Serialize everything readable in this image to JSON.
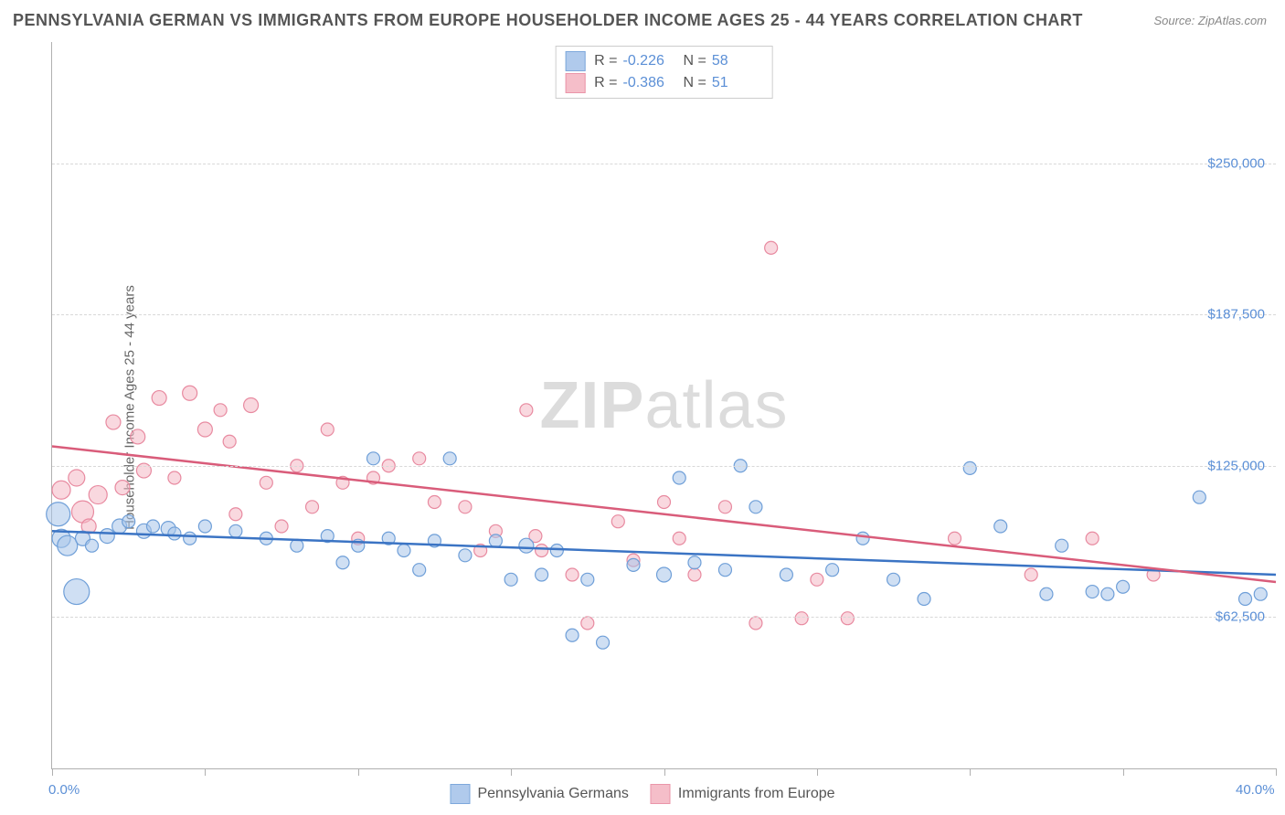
{
  "title": "PENNSYLVANIA GERMAN VS IMMIGRANTS FROM EUROPE HOUSEHOLDER INCOME AGES 25 - 44 YEARS CORRELATION CHART",
  "source": "Source: ZipAtlas.com",
  "ylabel": "Householder Income Ages 25 - 44 years",
  "watermark_bold": "ZIP",
  "watermark_rest": "atlas",
  "chart": {
    "type": "scatter",
    "xlim": [
      0,
      40
    ],
    "ylim": [
      0,
      300000
    ],
    "x_tick_positions": [
      0,
      5,
      10,
      15,
      20,
      25,
      30,
      35,
      40
    ],
    "x_tick_labels_shown": {
      "0": "0.0%",
      "40": "40.0%"
    },
    "y_gridlines": [
      62500,
      125000,
      187500,
      250000
    ],
    "y_tick_labels": [
      "$62,500",
      "$125,000",
      "$187,500",
      "$250,000"
    ],
    "background_color": "#ffffff",
    "grid_color": "#d8d8d8",
    "axis_color": "#b0b0b0",
    "tick_label_color": "#5b8fd6"
  },
  "series": [
    {
      "name": "Pennsylvania Germans",
      "color_fill": "#a8c5ea",
      "color_stroke": "#6f9fd8",
      "line_color": "#3b74c4",
      "fill_opacity": 0.55,
      "R": "-0.226",
      "N": "58",
      "regression": {
        "x1": 0,
        "y1": 98000,
        "x2": 40,
        "y2": 80000
      },
      "points": [
        {
          "x": 0.2,
          "y": 105000,
          "r": 13
        },
        {
          "x": 0.3,
          "y": 95000,
          "r": 10
        },
        {
          "x": 0.5,
          "y": 92000,
          "r": 11
        },
        {
          "x": 0.8,
          "y": 73000,
          "r": 14
        },
        {
          "x": 1.0,
          "y": 95000,
          "r": 8
        },
        {
          "x": 1.3,
          "y": 92000,
          "r": 7
        },
        {
          "x": 1.8,
          "y": 96000,
          "r": 8
        },
        {
          "x": 2.2,
          "y": 100000,
          "r": 8
        },
        {
          "x": 2.5,
          "y": 102000,
          "r": 7
        },
        {
          "x": 3.0,
          "y": 98000,
          "r": 8
        },
        {
          "x": 3.3,
          "y": 100000,
          "r": 7
        },
        {
          "x": 3.8,
          "y": 99000,
          "r": 8
        },
        {
          "x": 4.0,
          "y": 97000,
          "r": 7
        },
        {
          "x": 4.5,
          "y": 95000,
          "r": 7
        },
        {
          "x": 5.0,
          "y": 100000,
          "r": 7
        },
        {
          "x": 6.0,
          "y": 98000,
          "r": 7
        },
        {
          "x": 7.0,
          "y": 95000,
          "r": 7
        },
        {
          "x": 8.0,
          "y": 92000,
          "r": 7
        },
        {
          "x": 9.0,
          "y": 96000,
          "r": 7
        },
        {
          "x": 9.5,
          "y": 85000,
          "r": 7
        },
        {
          "x": 10.0,
          "y": 92000,
          "r": 7
        },
        {
          "x": 10.5,
          "y": 128000,
          "r": 7
        },
        {
          "x": 11.0,
          "y": 95000,
          "r": 7
        },
        {
          "x": 11.5,
          "y": 90000,
          "r": 7
        },
        {
          "x": 12.0,
          "y": 82000,
          "r": 7
        },
        {
          "x": 12.5,
          "y": 94000,
          "r": 7
        },
        {
          "x": 13.0,
          "y": 128000,
          "r": 7
        },
        {
          "x": 13.5,
          "y": 88000,
          "r": 7
        },
        {
          "x": 14.5,
          "y": 94000,
          "r": 7
        },
        {
          "x": 15.0,
          "y": 78000,
          "r": 7
        },
        {
          "x": 15.5,
          "y": 92000,
          "r": 8
        },
        {
          "x": 16.0,
          "y": 80000,
          "r": 7
        },
        {
          "x": 16.5,
          "y": 90000,
          "r": 7
        },
        {
          "x": 17.0,
          "y": 55000,
          "r": 7
        },
        {
          "x": 17.5,
          "y": 78000,
          "r": 7
        },
        {
          "x": 18.0,
          "y": 52000,
          "r": 7
        },
        {
          "x": 19.0,
          "y": 84000,
          "r": 7
        },
        {
          "x": 20.0,
          "y": 80000,
          "r": 8
        },
        {
          "x": 20.5,
          "y": 120000,
          "r": 7
        },
        {
          "x": 21.0,
          "y": 85000,
          "r": 7
        },
        {
          "x": 22.0,
          "y": 82000,
          "r": 7
        },
        {
          "x": 22.5,
          "y": 125000,
          "r": 7
        },
        {
          "x": 23.0,
          "y": 108000,
          "r": 7
        },
        {
          "x": 24.0,
          "y": 80000,
          "r": 7
        },
        {
          "x": 25.5,
          "y": 82000,
          "r": 7
        },
        {
          "x": 26.5,
          "y": 95000,
          "r": 7
        },
        {
          "x": 27.5,
          "y": 78000,
          "r": 7
        },
        {
          "x": 28.5,
          "y": 70000,
          "r": 7
        },
        {
          "x": 30.0,
          "y": 124000,
          "r": 7
        },
        {
          "x": 31.0,
          "y": 100000,
          "r": 7
        },
        {
          "x": 32.5,
          "y": 72000,
          "r": 7
        },
        {
          "x": 33.0,
          "y": 92000,
          "r": 7
        },
        {
          "x": 34.0,
          "y": 73000,
          "r": 7
        },
        {
          "x": 34.5,
          "y": 72000,
          "r": 7
        },
        {
          "x": 35.0,
          "y": 75000,
          "r": 7
        },
        {
          "x": 37.5,
          "y": 112000,
          "r": 7
        },
        {
          "x": 39.0,
          "y": 70000,
          "r": 7
        },
        {
          "x": 39.5,
          "y": 72000,
          "r": 7
        }
      ]
    },
    {
      "name": "Immigrants from Europe",
      "color_fill": "#f4b8c4",
      "color_stroke": "#e88aa0",
      "line_color": "#d95c7a",
      "fill_opacity": 0.55,
      "R": "-0.386",
      "N": "51",
      "regression": {
        "x1": 0,
        "y1": 133000,
        "x2": 40,
        "y2": 77000
      },
      "points": [
        {
          "x": 0.3,
          "y": 115000,
          "r": 10
        },
        {
          "x": 0.8,
          "y": 120000,
          "r": 9
        },
        {
          "x": 1.0,
          "y": 106000,
          "r": 12
        },
        {
          "x": 1.2,
          "y": 100000,
          "r": 8
        },
        {
          "x": 1.5,
          "y": 113000,
          "r": 10
        },
        {
          "x": 2.0,
          "y": 143000,
          "r": 8
        },
        {
          "x": 2.3,
          "y": 116000,
          "r": 8
        },
        {
          "x": 2.8,
          "y": 137000,
          "r": 8
        },
        {
          "x": 3.0,
          "y": 123000,
          "r": 8
        },
        {
          "x": 3.5,
          "y": 153000,
          "r": 8
        },
        {
          "x": 4.0,
          "y": 120000,
          "r": 7
        },
        {
          "x": 4.5,
          "y": 155000,
          "r": 8
        },
        {
          "x": 5.0,
          "y": 140000,
          "r": 8
        },
        {
          "x": 5.5,
          "y": 148000,
          "r": 7
        },
        {
          "x": 5.8,
          "y": 135000,
          "r": 7
        },
        {
          "x": 6.0,
          "y": 105000,
          "r": 7
        },
        {
          "x": 6.5,
          "y": 150000,
          "r": 8
        },
        {
          "x": 7.0,
          "y": 118000,
          "r": 7
        },
        {
          "x": 7.5,
          "y": 100000,
          "r": 7
        },
        {
          "x": 8.0,
          "y": 125000,
          "r": 7
        },
        {
          "x": 8.5,
          "y": 108000,
          "r": 7
        },
        {
          "x": 9.0,
          "y": 140000,
          "r": 7
        },
        {
          "x": 9.5,
          "y": 118000,
          "r": 7
        },
        {
          "x": 10.0,
          "y": 95000,
          "r": 7
        },
        {
          "x": 10.5,
          "y": 120000,
          "r": 7
        },
        {
          "x": 11.0,
          "y": 125000,
          "r": 7
        },
        {
          "x": 12.0,
          "y": 128000,
          "r": 7
        },
        {
          "x": 12.5,
          "y": 110000,
          "r": 7
        },
        {
          "x": 13.5,
          "y": 108000,
          "r": 7
        },
        {
          "x": 14.0,
          "y": 90000,
          "r": 7
        },
        {
          "x": 14.5,
          "y": 98000,
          "r": 7
        },
        {
          "x": 15.5,
          "y": 148000,
          "r": 7
        },
        {
          "x": 15.8,
          "y": 96000,
          "r": 7
        },
        {
          "x": 16.0,
          "y": 90000,
          "r": 7
        },
        {
          "x": 17.0,
          "y": 80000,
          "r": 7
        },
        {
          "x": 17.5,
          "y": 60000,
          "r": 7
        },
        {
          "x": 18.5,
          "y": 102000,
          "r": 7
        },
        {
          "x": 19.0,
          "y": 86000,
          "r": 7
        },
        {
          "x": 20.0,
          "y": 110000,
          "r": 7
        },
        {
          "x": 20.5,
          "y": 95000,
          "r": 7
        },
        {
          "x": 21.0,
          "y": 80000,
          "r": 7
        },
        {
          "x": 22.0,
          "y": 108000,
          "r": 7
        },
        {
          "x": 23.0,
          "y": 60000,
          "r": 7
        },
        {
          "x": 23.5,
          "y": 215000,
          "r": 7
        },
        {
          "x": 24.5,
          "y": 62000,
          "r": 7
        },
        {
          "x": 25.0,
          "y": 78000,
          "r": 7
        },
        {
          "x": 26.0,
          "y": 62000,
          "r": 7
        },
        {
          "x": 29.5,
          "y": 95000,
          "r": 7
        },
        {
          "x": 32.0,
          "y": 80000,
          "r": 7
        },
        {
          "x": 34.0,
          "y": 95000,
          "r": 7
        },
        {
          "x": 36.0,
          "y": 80000,
          "r": 7
        }
      ]
    }
  ],
  "stats_labels": {
    "R": "R =",
    "N": "N ="
  },
  "legend": {
    "series1": "Pennsylvania Germans",
    "series2": "Immigrants from Europe"
  }
}
